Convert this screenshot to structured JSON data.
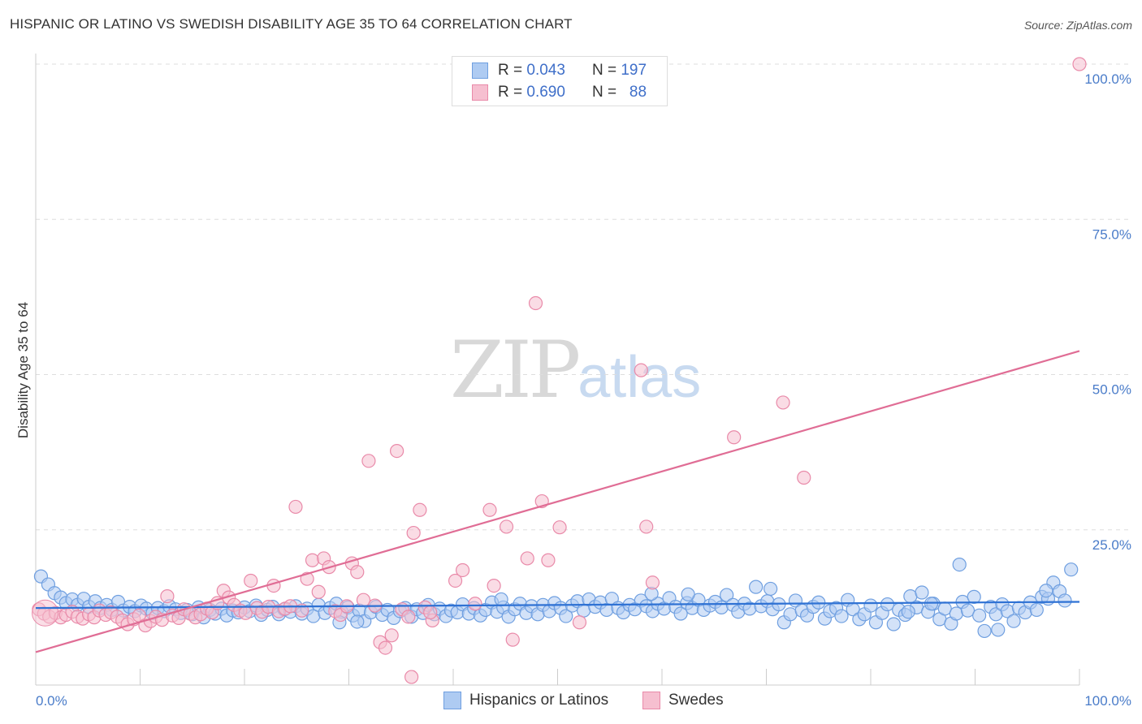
{
  "title": "HISPANIC OR LATINO VS SWEDISH DISABILITY AGE 35 TO 64 CORRELATION CHART",
  "source": "Source: ZipAtlas.com",
  "watermark": {
    "zip": "ZIP",
    "atlas": "atlas"
  },
  "colors": {
    "blue_fill": "#aecbf2",
    "blue_stroke": "#6f9fe0",
    "blue_line": "#2f72d4",
    "pink_fill": "#f6bfd0",
    "pink_stroke": "#e98aa9",
    "pink_line": "#e06d95",
    "tick_text": "#4a7cc9",
    "grid": "#dddddd"
  },
  "legend": {
    "rows": [
      {
        "r_label": "R =",
        "r_value": "0.043",
        "n_label": "N =",
        "n_value": "197"
      },
      {
        "r_label": "R =",
        "r_value": "0.690",
        "n_label": "N =",
        "n_value": "88"
      }
    ]
  },
  "bottom_legend": {
    "blue": "Hispanics or Latinos",
    "pink": "Swedes"
  },
  "chart_data": {
    "type": "scatter",
    "title": "HISPANIC OR LATINO VS SWEDISH DISABILITY AGE 35 TO 64 CORRELATION CHART",
    "xlabel": "",
    "ylabel": "Disability Age 35 to 64",
    "xlim": [
      0,
      100
    ],
    "ylim": [
      0,
      100
    ],
    "x_tick_labels": [
      "0.0%",
      "100.0%"
    ],
    "y_tick_labels": [
      "100.0%",
      "75.0%",
      "50.0%",
      "25.0%"
    ],
    "y_ticks": [
      100,
      75,
      50,
      25
    ],
    "grid": "horizontal dashed",
    "legend_placement": "top-center",
    "series": [
      {
        "name": "Hispanics or Latinos",
        "color": "#aecbf2",
        "r": 0.043,
        "n": 197,
        "trend": {
          "x": [
            0,
            100
          ],
          "y": [
            12.4,
            13.4
          ]
        },
        "points": [
          [
            0.5,
            17.5
          ],
          [
            1.2,
            16.2
          ],
          [
            1.8,
            14.8
          ],
          [
            2.4,
            14.1
          ],
          [
            2.9,
            13.2
          ],
          [
            3.5,
            13.8
          ],
          [
            4.0,
            12.9
          ],
          [
            4.6,
            13.9
          ],
          [
            5.1,
            12.6
          ],
          [
            5.7,
            13.5
          ],
          [
            6.2,
            12.4
          ],
          [
            6.8,
            12.9
          ],
          [
            7.3,
            12.1
          ],
          [
            7.9,
            13.4
          ],
          [
            8.4,
            12.0
          ],
          [
            9.0,
            12.6
          ],
          [
            9.5,
            11.9
          ],
          [
            10.1,
            12.8
          ],
          [
            10.6,
            12.3
          ],
          [
            11.2,
            11.6
          ],
          [
            11.7,
            12.4
          ],
          [
            12.3,
            11.9
          ],
          [
            12.8,
            12.7
          ],
          [
            13.4,
            12.2
          ],
          [
            13.9,
            11.6
          ],
          [
            14.5,
            12.1
          ],
          [
            15.0,
            11.4
          ],
          [
            15.6,
            12.5
          ],
          [
            16.1,
            10.9
          ],
          [
            16.7,
            12.1
          ],
          [
            17.2,
            11.5
          ],
          [
            17.8,
            12.3
          ],
          [
            18.3,
            11.2
          ],
          [
            18.9,
            12.0
          ],
          [
            19.4,
            11.7
          ],
          [
            20.0,
            12.5
          ],
          [
            20.5,
            11.9
          ],
          [
            21.1,
            12.8
          ],
          [
            21.6,
            11.3
          ],
          [
            22.2,
            12.1
          ],
          [
            22.7,
            12.6
          ],
          [
            23.3,
            11.4
          ],
          [
            23.8,
            12.2
          ],
          [
            24.4,
            11.8
          ],
          [
            24.9,
            12.7
          ],
          [
            25.5,
            11.5
          ],
          [
            26.0,
            12.3
          ],
          [
            26.6,
            11.1
          ],
          [
            27.1,
            12.9
          ],
          [
            27.7,
            11.6
          ],
          [
            28.2,
            12.4
          ],
          [
            28.8,
            13.1
          ],
          [
            29.3,
            11.8
          ],
          [
            29.9,
            12.5
          ],
          [
            30.4,
            11.2
          ],
          [
            31.0,
            12.0
          ],
          [
            31.5,
            10.3
          ],
          [
            32.1,
            11.7
          ],
          [
            32.6,
            12.6
          ],
          [
            33.2,
            11.3
          ],
          [
            33.7,
            12.1
          ],
          [
            34.3,
            10.8
          ],
          [
            34.9,
            11.9
          ],
          [
            35.4,
            12.4
          ],
          [
            36.0,
            11.0
          ],
          [
            36.5,
            12.2
          ],
          [
            37.1,
            11.6
          ],
          [
            37.6,
            12.9
          ],
          [
            38.2,
            11.4
          ],
          [
            38.7,
            12.3
          ],
          [
            39.3,
            11.1
          ],
          [
            39.8,
            12.0
          ],
          [
            40.4,
            11.7
          ],
          [
            40.9,
            13.0
          ],
          [
            41.5,
            11.5
          ],
          [
            42.0,
            12.4
          ],
          [
            42.6,
            11.2
          ],
          [
            43.1,
            12.1
          ],
          [
            43.7,
            13.3
          ],
          [
            44.2,
            11.8
          ],
          [
            44.8,
            12.5
          ],
          [
            45.3,
            11.0
          ],
          [
            45.9,
            12.2
          ],
          [
            46.4,
            13.1
          ],
          [
            47.0,
            11.6
          ],
          [
            47.5,
            12.7
          ],
          [
            48.1,
            11.4
          ],
          [
            48.6,
            12.9
          ],
          [
            49.2,
            11.9
          ],
          [
            49.7,
            13.2
          ],
          [
            50.3,
            12.4
          ],
          [
            50.8,
            11.1
          ],
          [
            51.4,
            12.8
          ],
          [
            51.9,
            13.5
          ],
          [
            52.5,
            12.0
          ],
          [
            53.0,
            13.8
          ],
          [
            53.6,
            12.6
          ],
          [
            54.1,
            13.3
          ],
          [
            54.7,
            12.1
          ],
          [
            55.2,
            13.9
          ],
          [
            55.8,
            12.4
          ],
          [
            56.3,
            11.7
          ],
          [
            56.9,
            12.9
          ],
          [
            57.4,
            12.2
          ],
          [
            58.0,
            13.6
          ],
          [
            58.5,
            12.7
          ],
          [
            59.1,
            11.9
          ],
          [
            59.6,
            13.1
          ],
          [
            60.2,
            12.3
          ],
          [
            60.7,
            14.0
          ],
          [
            61.3,
            12.6
          ],
          [
            61.8,
            11.5
          ],
          [
            62.4,
            13.2
          ],
          [
            62.9,
            12.4
          ],
          [
            63.5,
            13.7
          ],
          [
            64.0,
            12.1
          ],
          [
            64.6,
            12.8
          ],
          [
            65.1,
            13.4
          ],
          [
            65.7,
            12.5
          ],
          [
            66.2,
            14.5
          ],
          [
            66.8,
            12.9
          ],
          [
            67.3,
            11.8
          ],
          [
            67.9,
            13.1
          ],
          [
            68.4,
            12.3
          ],
          [
            69.0,
            15.8
          ],
          [
            69.5,
            12.7
          ],
          [
            70.1,
            13.5
          ],
          [
            70.6,
            12.2
          ],
          [
            71.2,
            13.0
          ],
          [
            71.7,
            10.1
          ],
          [
            72.3,
            11.4
          ],
          [
            72.8,
            13.6
          ],
          [
            73.4,
            12.0
          ],
          [
            73.9,
            11.2
          ],
          [
            74.5,
            12.6
          ],
          [
            75.0,
            13.3
          ],
          [
            75.6,
            10.7
          ],
          [
            76.1,
            11.9
          ],
          [
            76.7,
            12.4
          ],
          [
            77.2,
            11.1
          ],
          [
            77.8,
            13.7
          ],
          [
            78.3,
            12.2
          ],
          [
            78.9,
            10.6
          ],
          [
            79.4,
            11.4
          ],
          [
            80.0,
            12.8
          ],
          [
            80.5,
            10.1
          ],
          [
            81.1,
            11.6
          ],
          [
            81.6,
            13.0
          ],
          [
            82.2,
            9.8
          ],
          [
            82.7,
            12.1
          ],
          [
            83.3,
            11.3
          ],
          [
            83.8,
            14.3
          ],
          [
            84.4,
            12.5
          ],
          [
            84.9,
            14.9
          ],
          [
            85.5,
            11.8
          ],
          [
            86.0,
            13.1
          ],
          [
            86.6,
            10.6
          ],
          [
            87.1,
            12.3
          ],
          [
            87.7,
            9.9
          ],
          [
            88.2,
            11.5
          ],
          [
            88.8,
            13.4
          ],
          [
            89.3,
            12.0
          ],
          [
            89.9,
            14.2
          ],
          [
            90.4,
            11.2
          ],
          [
            90.9,
            8.7
          ],
          [
            91.5,
            12.6
          ],
          [
            92.0,
            11.4
          ],
          [
            92.6,
            13.0
          ],
          [
            93.1,
            11.9
          ],
          [
            93.7,
            10.3
          ],
          [
            94.2,
            12.4
          ],
          [
            94.8,
            11.7
          ],
          [
            95.3,
            13.3
          ],
          [
            95.9,
            12.1
          ],
          [
            96.4,
            14.2
          ],
          [
            97.0,
            13.9
          ],
          [
            97.5,
            16.5
          ],
          [
            98.1,
            15.1
          ],
          [
            98.6,
            13.6
          ],
          [
            99.2,
            18.6
          ],
          [
            44.6,
            13.8
          ],
          [
            59.0,
            14.7
          ],
          [
            62.5,
            14.6
          ],
          [
            70.4,
            15.5
          ],
          [
            83.6,
            11.8
          ],
          [
            85.8,
            13.1
          ],
          [
            88.5,
            19.4
          ],
          [
            92.2,
            8.9
          ],
          [
            96.8,
            15.2
          ],
          [
            30.8,
            10.2
          ],
          [
            29.1,
            10.1
          ]
        ]
      },
      {
        "name": "Swedes",
        "color": "#f6bfd0",
        "r": 0.69,
        "n": 88,
        "trend": {
          "x": [
            0,
            100
          ],
          "y": [
            5.3,
            53.8
          ]
        },
        "points": [
          [
            0.3,
            12.2
          ],
          [
            0.8,
            11.5
          ],
          [
            1.3,
            11.0
          ],
          [
            1.9,
            11.6
          ],
          [
            2.4,
            10.9
          ],
          [
            2.9,
            11.3
          ],
          [
            3.5,
            11.8
          ],
          [
            4.0,
            11.0
          ],
          [
            4.5,
            10.7
          ],
          [
            5.1,
            11.4
          ],
          [
            5.6,
            10.9
          ],
          [
            6.1,
            12.0
          ],
          [
            6.7,
            11.3
          ],
          [
            7.2,
            11.7
          ],
          [
            7.8,
            11.0
          ],
          [
            8.3,
            10.4
          ],
          [
            8.8,
            9.8
          ],
          [
            9.4,
            10.6
          ],
          [
            9.9,
            11.2
          ],
          [
            10.5,
            9.6
          ],
          [
            11.0,
            10.3
          ],
          [
            11.5,
            11.0
          ],
          [
            12.1,
            10.5
          ],
          [
            12.6,
            14.3
          ],
          [
            13.1,
            11.2
          ],
          [
            13.7,
            10.8
          ],
          [
            14.2,
            12.2
          ],
          [
            14.8,
            11.5
          ],
          [
            15.3,
            10.9
          ],
          [
            15.8,
            11.4
          ],
          [
            16.4,
            12.3
          ],
          [
            16.9,
            11.7
          ],
          [
            17.4,
            13.2
          ],
          [
            18.0,
            15.2
          ],
          [
            18.5,
            14.1
          ],
          [
            19.0,
            12.9
          ],
          [
            19.6,
            12.0
          ],
          [
            20.1,
            11.6
          ],
          [
            20.6,
            16.8
          ],
          [
            21.2,
            12.4
          ],
          [
            21.7,
            11.8
          ],
          [
            22.3,
            12.6
          ],
          [
            22.8,
            16.0
          ],
          [
            23.3,
            11.9
          ],
          [
            23.9,
            12.3
          ],
          [
            24.4,
            12.7
          ],
          [
            24.9,
            28.7
          ],
          [
            25.5,
            12.0
          ],
          [
            26.0,
            17.1
          ],
          [
            26.5,
            20.1
          ],
          [
            27.1,
            15.0
          ],
          [
            27.6,
            20.4
          ],
          [
            28.1,
            19.0
          ],
          [
            28.7,
            11.9
          ],
          [
            29.2,
            11.3
          ],
          [
            29.8,
            12.7
          ],
          [
            30.3,
            19.6
          ],
          [
            30.8,
            18.2
          ],
          [
            31.4,
            13.7
          ],
          [
            31.9,
            36.1
          ],
          [
            32.5,
            12.8
          ],
          [
            33.0,
            6.9
          ],
          [
            33.5,
            6.0
          ],
          [
            34.1,
            8.0
          ],
          [
            34.6,
            37.7
          ],
          [
            35.1,
            12.2
          ],
          [
            35.7,
            11.0
          ],
          [
            36.2,
            24.5
          ],
          [
            36.8,
            28.2
          ],
          [
            37.3,
            12.5
          ],
          [
            38.0,
            10.4
          ],
          [
            40.2,
            16.8
          ],
          [
            40.9,
            18.5
          ],
          [
            42.1,
            13.1
          ],
          [
            43.5,
            28.2
          ],
          [
            43.9,
            16.0
          ],
          [
            45.1,
            25.5
          ],
          [
            45.7,
            7.3
          ],
          [
            47.1,
            20.4
          ],
          [
            47.9,
            61.5
          ],
          [
            48.5,
            29.6
          ],
          [
            49.1,
            20.1
          ],
          [
            50.2,
            25.4
          ],
          [
            52.1,
            10.1
          ],
          [
            58.0,
            50.7
          ],
          [
            58.5,
            25.5
          ],
          [
            59.1,
            16.5
          ],
          [
            66.9,
            39.9
          ],
          [
            71.6,
            45.5
          ],
          [
            73.6,
            33.4
          ],
          [
            37.8,
            11.7
          ],
          [
            100.0,
            100.0
          ],
          [
            36.0,
            1.3
          ]
        ]
      }
    ]
  }
}
